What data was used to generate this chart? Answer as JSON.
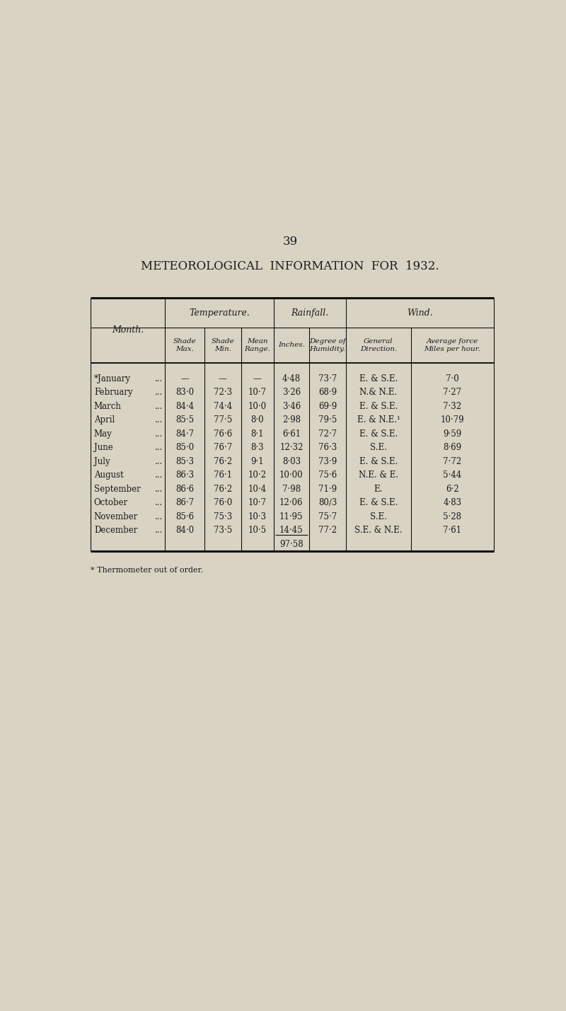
{
  "page_number": "39",
  "title": "METEOROLOGICAL  INFORMATION  FOR  1932.",
  "bg_color": "#d9d3c3",
  "text_color": "#1a1a1a",
  "footnote": "* Thermometer out of order.",
  "months": [
    "*January",
    "February",
    "March",
    "April",
    "May",
    "June",
    "July",
    "August",
    "September",
    "October",
    "November",
    "December"
  ],
  "shade_max": [
    "—",
    "83·0",
    "84·4",
    "85·5",
    "84·7",
    "85·0",
    "85·3",
    "86·3",
    "86·6",
    "86·7",
    "85·6",
    "84·0"
  ],
  "shade_min": [
    "—",
    "72·3",
    "74·4",
    "77·5",
    "76·6",
    "76·7",
    "76·2",
    "76·1",
    "76·2",
    "76·0",
    "75·3",
    "73·5"
  ],
  "mean_range": [
    "—",
    "10·7",
    "10·0",
    "8·0",
    "8·1",
    "8·3",
    "9·1",
    "10·2",
    "10·4",
    "10·7",
    "10·3",
    "10·5"
  ],
  "inches": [
    "4·48",
    "3·26",
    "3·46",
    "2·98",
    "6·61",
    "12·32",
    "8·03",
    "10·00",
    "7·98",
    "12·06",
    "11·95",
    "14·45"
  ],
  "humidity": [
    "73·7",
    "68·9",
    "69·9",
    "79·5",
    "72·7",
    "76·3",
    "73·9",
    "75·6",
    "71·9",
    "80∕3",
    "75·7",
    "77·2"
  ],
  "direction": [
    "E. & S.E.",
    "N.& N.E.",
    "E. & S.E.",
    "E. & N.E.¹",
    "E. & S.E.",
    "S.E.",
    "E. & S.E.",
    "N.E. & E.",
    "E.",
    "E. & S.E.",
    "S.E.",
    "S.E. & N.E."
  ],
  "avg_force": [
    "7·0",
    "7·27",
    "7·32",
    "10·79",
    "9·59",
    "8·69",
    "7·72",
    "5·44",
    "6·2",
    "4·83",
    "5·28",
    "7·61"
  ],
  "total_inches": "97·58"
}
